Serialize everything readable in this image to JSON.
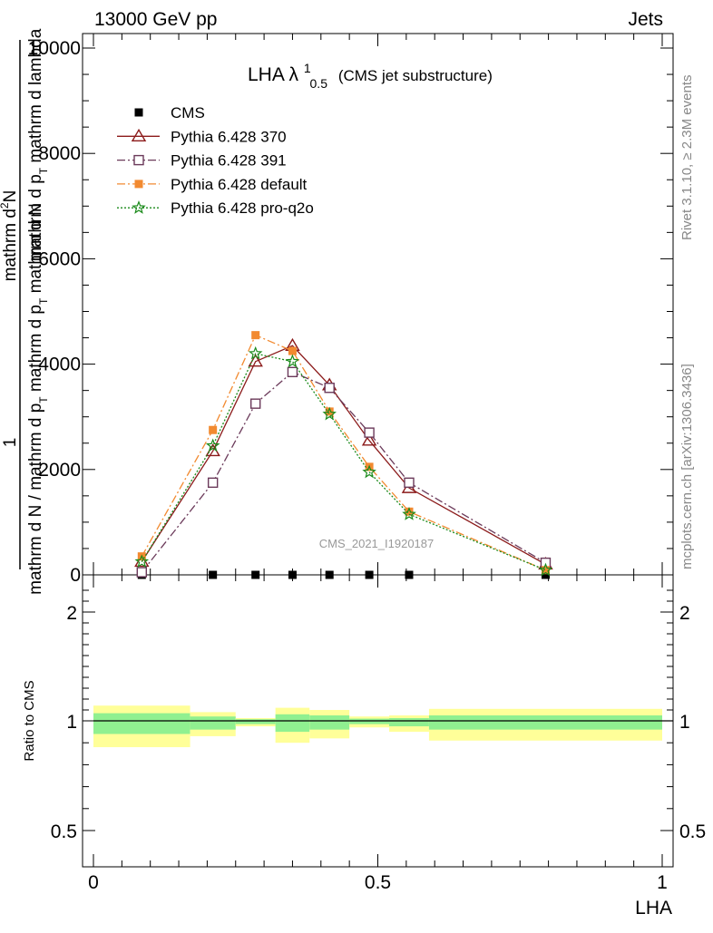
{
  "header": {
    "left": "13000 GeV pp",
    "right": "Jets"
  },
  "side_labels": {
    "rivet": "Rivet 3.1.10, ≥ 2.3M events",
    "mcplots": "mcplots.cern.ch [arXiv:1306.3436]"
  },
  "watermark": "CMS_2021_I1920187",
  "chart_data": [
    {
      "type": "line",
      "title_main": "LHA λ",
      "title_sup": "1",
      "title_sub": "0.5",
      "title_suffix": "(CMS jet substructure)",
      "ylabel_lines": [
        "mathrm d²N",
        "mathrm d p_T mathrm d lambda",
        "1",
        "mathrm d N / mathrm d p_T"
      ],
      "ylabel_display": {
        "num_top": "mathrm d²N",
        "num_bottom_a": "mathrm d p",
        "num_bottom_sub": "T",
        "num_bottom_b": " mathrm d lambda",
        "den_one": "1",
        "den_text_a": "mathrm d N / mathrm d p",
        "den_text_sub": "T",
        "den_text_b": " mathrm d p",
        "den_text_sub2": "T",
        "den_text_c": " mathrm d N",
        "num_top_sup": "2"
      },
      "xlim": [
        0,
        1
      ],
      "ylim": [
        0,
        10000
      ],
      "yticks": [
        0,
        2000,
        4000,
        6000,
        8000,
        10000
      ],
      "ytick_labels": [
        "0",
        "2000",
        "4000",
        "6000",
        "8000",
        "10000"
      ],
      "legend_position": "top-left",
      "series": [
        {
          "name": "CMS",
          "color": "#000000",
          "marker": "filled-square",
          "line": "none",
          "x": [
            0.085,
            0.21,
            0.285,
            0.35,
            0.415,
            0.485,
            0.555,
            0.795
          ],
          "values": [
            0,
            0,
            0,
            0,
            0,
            0,
            0,
            0
          ]
        },
        {
          "name": "Pythia 6.428 370",
          "color": "#8b1a1a",
          "marker": "open-triangle",
          "line": "solid",
          "x": [
            0.085,
            0.21,
            0.285,
            0.35,
            0.415,
            0.485,
            0.555,
            0.795
          ],
          "values": [
            250,
            2350,
            4050,
            4350,
            3600,
            2550,
            1650,
            200
          ]
        },
        {
          "name": "Pythia 6.428 391",
          "color": "#6b3a5a",
          "marker": "open-square",
          "line": "dashdot",
          "x": [
            0.085,
            0.21,
            0.285,
            0.35,
            0.415,
            0.485,
            0.555,
            0.795
          ],
          "values": [
            50,
            1750,
            3250,
            3850,
            3550,
            2700,
            1750,
            230
          ]
        },
        {
          "name": "Pythia 6.428 default",
          "color": "#f28a30",
          "marker": "filled-square",
          "line": "dashdot",
          "x": [
            0.085,
            0.21,
            0.285,
            0.35,
            0.415,
            0.485,
            0.555,
            0.795
          ],
          "values": [
            350,
            2750,
            4550,
            4250,
            3100,
            2050,
            1200,
            90
          ]
        },
        {
          "name": "Pythia 6.428 pro-q2o",
          "color": "#1a8a1a",
          "marker": "star",
          "line": "dotted",
          "x": [
            0.085,
            0.21,
            0.285,
            0.35,
            0.415,
            0.485,
            0.555,
            0.795
          ],
          "values": [
            250,
            2450,
            4200,
            4050,
            3050,
            1950,
            1150,
            90
          ]
        }
      ]
    },
    {
      "type": "area",
      "ylabel": "Ratio to CMS",
      "xlabel": "LHA",
      "xlim": [
        0,
        1
      ],
      "ylim": [
        0.4,
        2.3
      ],
      "xticks": [
        0,
        0.5,
        1
      ],
      "xtick_labels": [
        "0",
        "0.5",
        "1"
      ],
      "yticks": [
        0.5,
        1,
        2
      ],
      "ytick_labels": [
        "0.5",
        "1",
        "2"
      ],
      "reference": 1,
      "bins": [
        {
          "x": [
            0.0,
            0.17
          ],
          "inner": [
            0.94,
            1.07
          ],
          "outer": [
            0.88,
            1.14
          ]
        },
        {
          "x": [
            0.17,
            0.25
          ],
          "inner": [
            0.96,
            1.04
          ],
          "outer": [
            0.93,
            1.08
          ]
        },
        {
          "x": [
            0.25,
            0.32
          ],
          "inner": [
            0.985,
            1.015
          ],
          "outer": [
            0.975,
            1.025
          ]
        },
        {
          "x": [
            0.32,
            0.38
          ],
          "inner": [
            0.95,
            1.06
          ],
          "outer": [
            0.9,
            1.12
          ]
        },
        {
          "x": [
            0.38,
            0.45
          ],
          "inner": [
            0.96,
            1.05
          ],
          "outer": [
            0.92,
            1.1
          ]
        },
        {
          "x": [
            0.45,
            0.52
          ],
          "inner": [
            0.985,
            1.02
          ],
          "outer": [
            0.97,
            1.04
          ]
        },
        {
          "x": [
            0.52,
            0.59
          ],
          "inner": [
            0.975,
            1.025
          ],
          "outer": [
            0.95,
            1.05
          ]
        },
        {
          "x": [
            0.59,
            1.0
          ],
          "inner": [
            0.96,
            1.05
          ],
          "outer": [
            0.91,
            1.11
          ]
        }
      ],
      "colors": {
        "inner": "#90f090",
        "outer": "#ffff99",
        "reference": "#000000"
      }
    }
  ]
}
